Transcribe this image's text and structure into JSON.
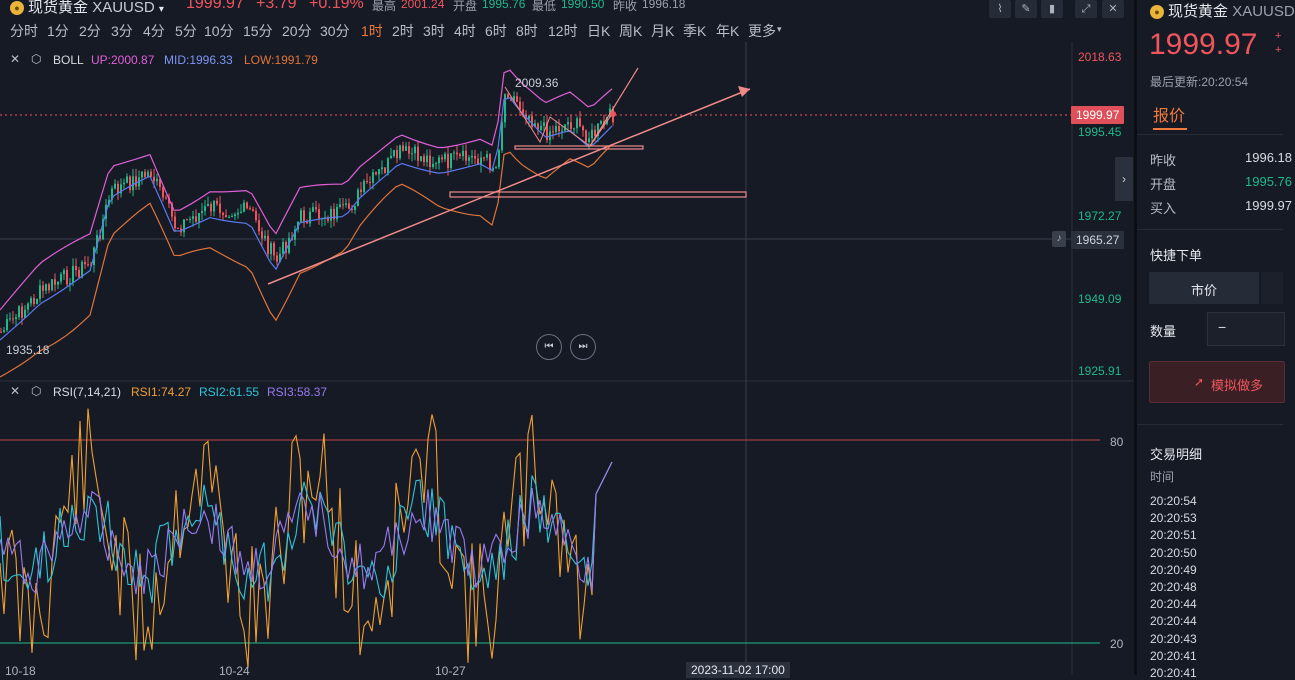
{
  "header": {
    "symbol_name": "现货黄金",
    "symbol_code": "XAUUSD",
    "price": "1999.97",
    "change": "+3.79",
    "change_pct": "+0.19%",
    "high_label": "最高",
    "high_value": "2001.24",
    "open_label": "开盘",
    "open_value": "1995.76",
    "low_label": "最低",
    "low_value": "1990.50",
    "prev_close_label": "昨收",
    "prev_close_value": "1996.18"
  },
  "timeframes": [
    "分时",
    "1分",
    "2分",
    "3分",
    "4分",
    "5分",
    "10分",
    "15分",
    "20分",
    "30分",
    "1时",
    "2时",
    "3时",
    "4时",
    "6时",
    "8时",
    "12时",
    "日K",
    "周K",
    "月K",
    "季K",
    "年K",
    "更多"
  ],
  "active_timeframe": "1时",
  "boll": {
    "name": "BOLL",
    "up_label": "UP:2000.87",
    "mid_label": "MID:1996.33",
    "low_label": "LOW:1991.79"
  },
  "rsi": {
    "name": "RSI(7,14,21)",
    "rsi1_label": "RSI1:74.27",
    "rsi2_label": "RSI2:61.55",
    "rsi3_label": "RSI3:58.37"
  },
  "price_axis": [
    "2018.63",
    "1995.45",
    "1972.27",
    "1949.09",
    "1925.91"
  ],
  "current_price_tag": "1999.97",
  "alert_price_tag": "1965.27",
  "chart_annotations": {
    "peak": "2009.36",
    "low": "1935.18"
  },
  "rsi_axis": [
    "80",
    "20"
  ],
  "date_axis": [
    "10-18",
    "10-24",
    "10-27"
  ],
  "crosshair_date": "2023-11-02 17:00",
  "colors": {
    "boll_up": "#e05fd6",
    "boll_mid": "#5a7bf0",
    "boll_low": "#e0743a",
    "rsi1": "#f0a032",
    "rsi2": "#2ec4d8",
    "rsi3": "#9a7af0",
    "up_candle": "#1fb98a",
    "down_candle": "#f0555d"
  },
  "panel": {
    "name": "现货黄金",
    "code": "XAUUSD",
    "price": "1999.97",
    "change_small_1": "+",
    "change_small_2": "+",
    "last_update": "最后更新:20:20:54",
    "tab_quote": "报价",
    "prev_close_label": "昨收",
    "prev_close_value": "1996.18",
    "open_label": "开盘",
    "open_value": "1995.76",
    "buy_label": "买入",
    "buy_value": "1999.97",
    "quick_order": "快捷下单",
    "market_price": "市价",
    "quantity_label": "数量",
    "quantity_minus": "−",
    "sim_long": "模拟做多",
    "trade_detail": "交易明细",
    "time_header": "时间",
    "times": [
      "20:20:54",
      "20:20:53",
      "20:20:51",
      "20:20:50",
      "20:20:49",
      "20:20:48",
      "20:20:44",
      "20:20:44",
      "20:20:43",
      "20:20:41",
      "20:20:41"
    ]
  }
}
